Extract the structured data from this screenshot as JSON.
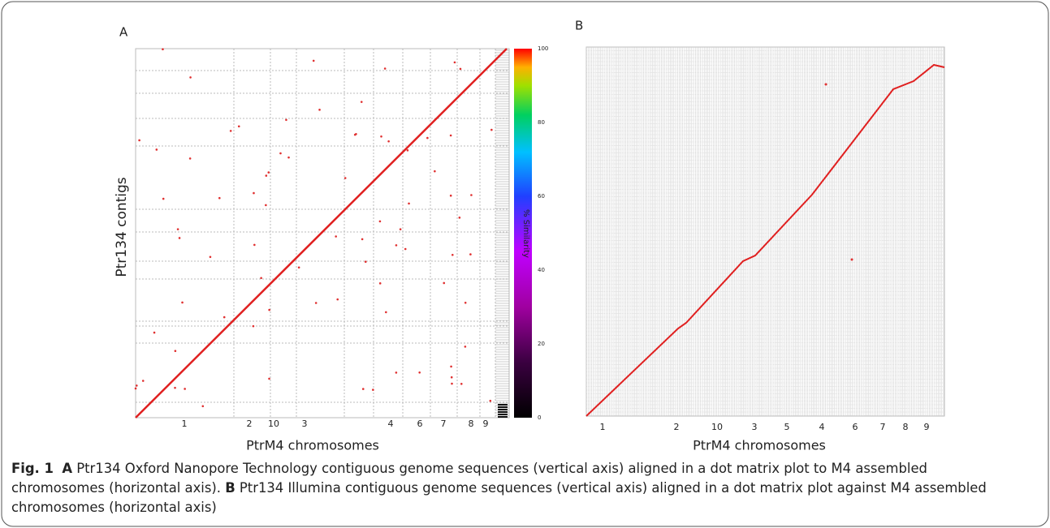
{
  "figure": {
    "panels": [
      {
        "label": "A",
        "x_label": "PtrM4 chromosomes",
        "y_label": "Ptr134 contigs",
        "chromosomes": [
          "1",
          "2",
          "10",
          "3",
          "4",
          "6",
          "7",
          "8",
          "9"
        ],
        "colorbar": {
          "label": "% Similarity",
          "ticks": [
            "0",
            "20",
            "40",
            "60",
            "80",
            "100"
          ]
        }
      },
      {
        "label": "B",
        "x_label": "PtrM4 chromosomes",
        "chromosomes": [
          "1",
          "2",
          "10",
          "3",
          "5",
          "4",
          "6",
          "7",
          "8",
          "9"
        ]
      }
    ],
    "caption": {
      "number": "Fig. 1",
      "parts": [
        {
          "label": "A",
          "text": "Ptr134 Oxford Nanopore Technology contiguous genome sequences (vertical axis) aligned in a dot matrix plot to M4 assembled chromosomes (horizontal axis)."
        },
        {
          "label": "B",
          "text": "Ptr134 Illumina contiguous genome sequences (vertical axis) aligned in a dot matrix plot against M4 assembled chromosomes (horizontal axis)"
        }
      ]
    }
  }
}
